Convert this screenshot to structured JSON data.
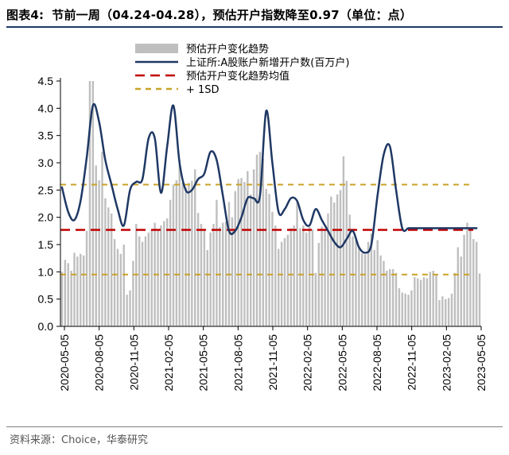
{
  "figure": {
    "label": "图表4:",
    "title": "节前一周（04.24-04.28），预估开户指数降至0.97（单位：点）",
    "source": "资料来源：Choice，华泰研究"
  },
  "chart_data": {
    "type": "bar",
    "title": "节前一周（04.24-04.28），预估开户指数降至0.97（单位：点）",
    "xlabel": "",
    "ylabel": "",
    "unit": "点",
    "ylim": [
      0,
      4.5
    ],
    "yticks": [
      "0.0",
      "0.5",
      "1.0",
      "1.5",
      "2.0",
      "2.5",
      "3.0",
      "3.5",
      "4.0",
      "4.5"
    ],
    "xticks": [
      "2020-05-05",
      "2020-08-05",
      "2020-11-05",
      "2021-02-05",
      "2021-05-05",
      "2021-08-05",
      "2021-11-05",
      "2022-02-05",
      "2022-05-05",
      "2022-08-05",
      "2022-11-05",
      "2023-02-05",
      "2023-05-05"
    ],
    "legend_position": "top",
    "grid": false,
    "legend": [
      {
        "label": "预估开户变化趋势",
        "kind": "bar",
        "color": "#bfbfbf"
      },
      {
        "label": "上证所:A股账户新增开户数(百万户)",
        "kind": "line",
        "color": "#1f3864"
      },
      {
        "label": "预估开户变化趋势均值",
        "kind": "dash",
        "color": "#c00000"
      },
      {
        "label": "+ 1SD",
        "kind": "dash",
        "color": "#c9a227"
      }
    ],
    "bars": {
      "name": "预估开户变化趋势",
      "color": "#bfbfbf",
      "values": [
        1.0,
        1.22,
        1.16,
        1.02,
        1.35,
        1.28,
        1.33,
        1.3,
        1.75,
        4.5,
        4.5,
        2.95,
        2.68,
        3.2,
        2.35,
        2.18,
        2.07,
        1.6,
        1.42,
        1.33,
        1.5,
        0.58,
        0.66,
        1.2,
        1.88,
        1.65,
        1.55,
        1.65,
        1.72,
        1.78,
        1.9,
        1.75,
        1.85,
        1.93,
        1.98,
        2.32,
        2.6,
        2.68,
        3.05,
        2.64,
        2.55,
        2.63,
        2.67,
        2.88,
        2.08,
        1.88,
        1.75,
        1.4,
        1.72,
        1.88,
        2.32,
        1.82,
        1.9,
        1.92,
        2.28,
        2.0,
        2.48,
        2.7,
        2.72,
        2.65,
        2.85,
        2.42,
        2.88,
        3.15,
        3.2,
        3.08,
        2.52,
        2.43,
        2.1,
        1.85,
        1.42,
        1.55,
        1.62,
        1.68,
        1.8,
        1.85,
        2.27,
        1.8,
        1.85,
        1.72,
        1.82,
        1.78,
        0.98,
        1.53,
        1.83,
        1.76,
        2.07,
        2.38,
        2.27,
        2.42,
        2.5,
        3.12,
        2.67,
        2.05,
        1.65,
        1.58,
        1.45,
        1.34,
        1.32,
        1.55,
        1.7,
        1.4,
        1.58,
        1.3,
        1.2,
        1.02,
        1.05,
        1.05,
        0.98,
        0.7,
        0.62,
        0.6,
        0.58,
        0.66,
        0.9,
        0.88,
        0.85,
        0.9,
        0.88,
        1.0,
        1.02,
        0.96,
        0.48,
        0.55,
        0.5,
        0.52,
        0.6,
        0.98,
        1.45,
        1.28,
        1.68,
        1.9,
        1.82,
        1.6,
        1.55,
        0.97
      ]
    },
    "line": {
      "name": "上证所:A股账户新增开户数(百万户)",
      "color": "#1f3864",
      "x_index": [
        0,
        2,
        4,
        6,
        8,
        10,
        12,
        14,
        16,
        18,
        20,
        22,
        24,
        26,
        28,
        30,
        32,
        34,
        36,
        38,
        40,
        42,
        44,
        46,
        48,
        50,
        52,
        54,
        56,
        58,
        60,
        62,
        64,
        66,
        68,
        70,
        72,
        74,
        76,
        78,
        80,
        82,
        84,
        86,
        88,
        90,
        92,
        94,
        96,
        98,
        100,
        102,
        104,
        106,
        108,
        110,
        112,
        114,
        116,
        118,
        120,
        122,
        124,
        126,
        128,
        130,
        132,
        134
      ],
      "values": [
        2.55,
        2.1,
        1.95,
        2.3,
        3.1,
        4.05,
        3.75,
        3.05,
        2.6,
        2.15,
        1.85,
        2.5,
        2.65,
        2.7,
        3.45,
        3.45,
        2.45,
        3.3,
        4.05,
        3.0,
        2.5,
        2.5,
        2.7,
        2.8,
        3.2,
        3.05,
        2.4,
        1.75,
        1.75,
        2.0,
        2.35,
        2.35,
        2.4,
        3.95,
        3.0,
        2.1,
        2.15,
        2.35,
        2.3,
        1.95,
        1.85,
        2.15,
        1.95,
        1.75,
        1.55,
        1.45,
        1.6,
        1.75,
        1.45,
        1.35,
        1.5,
        2.4,
        3.15,
        3.3,
        2.5,
        1.8,
        1.8,
        1.8,
        1.8,
        1.8,
        1.8,
        1.8,
        1.8,
        1.8,
        1.8,
        1.8,
        1.8,
        1.8
      ]
    },
    "hlines": [
      {
        "name": "预估开户变化趋势均值",
        "value": 1.77,
        "color": "#c00000"
      },
      {
        "name": "+ 1SD",
        "value": 2.6,
        "color": "#c9a227"
      },
      {
        "name": "- 1SD",
        "value": 0.95,
        "color": "#c9a227"
      }
    ],
    "latest_value": 0.97
  }
}
